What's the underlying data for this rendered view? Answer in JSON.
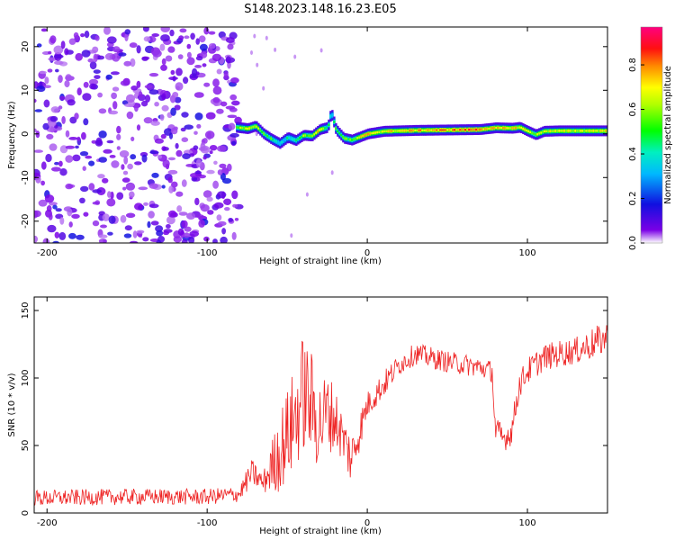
{
  "title": "S148.2023.148.16.23.E05",
  "colors": {
    "trace": "#ee2222",
    "frame": "#000000"
  },
  "chart_data": [
    {
      "type": "heatmap",
      "xlabel": "Height of straight line (km)",
      "ylabel": "Frequency (Hz)",
      "xlim": [
        -208,
        150
      ],
      "ylim": [
        -25,
        24.5
      ],
      "xticks": [
        -200,
        -100,
        0,
        100
      ],
      "xtick_labels": [
        "-200",
        "-100",
        "0",
        "100"
      ],
      "yticks": [
        -20,
        -10,
        0,
        10,
        20
      ],
      "ytick_labels": [
        "-20",
        "-10",
        "0",
        "10",
        "20"
      ],
      "colorbar": {
        "label": "Normalized spectral amplitude",
        "range": [
          0,
          0.97
        ],
        "ticks": [
          0.0,
          0.2,
          0.4,
          0.6,
          0.8
        ],
        "tick_labels": [
          "0.0",
          "0.2",
          "0.4",
          "0.6",
          "0.8"
        ],
        "colormap": "rainbow (purple-blue-cyan-green-yellow-red-pink)"
      },
      "noise_region_x": [
        -208,
        -80
      ],
      "ridge": {
        "x": [
          -82,
          -75,
          -70,
          -65,
          -60,
          -55,
          -50,
          -45,
          -40,
          -35,
          -30,
          -25,
          -23,
          -20,
          -15,
          -10,
          -5,
          0,
          10,
          30,
          50,
          70,
          80,
          90,
          95,
          100,
          105,
          110,
          120,
          140,
          150
        ],
        "y": [
          1.5,
          1.2,
          1.8,
          0.0,
          -1.2,
          -2.2,
          -0.8,
          -1.5,
          -0.3,
          -0.5,
          1.0,
          1.5,
          5.0,
          1.0,
          -1.0,
          -1.4,
          -0.7,
          0.0,
          0.6,
          0.8,
          0.9,
          1.0,
          1.4,
          1.3,
          1.5,
          0.6,
          -0.2,
          0.6,
          0.7,
          0.7,
          0.7
        ],
        "amplitude": [
          0.6,
          0.7,
          0.65,
          0.55,
          0.5,
          0.35,
          0.4,
          0.5,
          0.6,
          0.65,
          0.75,
          0.45,
          0.4,
          0.5,
          0.6,
          0.5,
          0.7,
          0.75,
          0.7,
          0.75,
          0.8,
          0.85,
          0.7,
          0.75,
          0.7,
          0.7,
          0.6,
          0.7,
          0.65,
          0.7,
          0.7
        ]
      }
    },
    {
      "type": "line",
      "xlabel": "Height of straight line (km)",
      "ylabel": "SNR (10 * v/v)",
      "xlim": [
        -208,
        150
      ],
      "ylim": [
        0,
        160
      ],
      "xticks": [
        -200,
        -100,
        0,
        100
      ],
      "xtick_labels": [
        "-200",
        "-100",
        "0",
        "100"
      ],
      "yticks": [
        0,
        50,
        100,
        150
      ],
      "ytick_labels": [
        "0",
        "50",
        "100",
        "150"
      ],
      "series": [
        {
          "x": [
            -208,
            -150,
            -100,
            -80,
            -72,
            -65,
            -55,
            -45,
            -40,
            -35,
            -30,
            -25,
            -20,
            -15,
            -10,
            -5,
            0,
            10,
            20,
            30,
            40,
            50,
            60,
            70,
            78,
            80,
            85,
            90,
            95,
            100,
            110,
            120,
            130,
            140,
            150
          ],
          "y": [
            11,
            12,
            12,
            14,
            30,
            22,
            45,
            70,
            90,
            80,
            65,
            75,
            70,
            55,
            40,
            60,
            80,
            95,
            110,
            118,
            115,
            112,
            110,
            108,
            105,
            60,
            55,
            60,
            95,
            105,
            115,
            118,
            120,
            125,
            130
          ],
          "noise": [
            6,
            6,
            6,
            6,
            10,
            8,
            30,
            40,
            45,
            40,
            35,
            30,
            25,
            18,
            20,
            15,
            10,
            10,
            8,
            8,
            8,
            8,
            8,
            8,
            8,
            12,
            10,
            10,
            10,
            10,
            10,
            10,
            10,
            12,
            12
          ]
        }
      ]
    }
  ]
}
